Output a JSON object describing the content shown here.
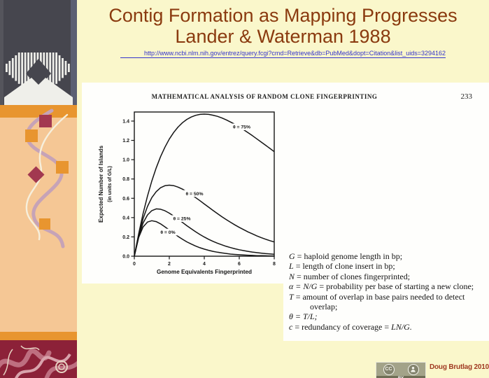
{
  "theme": {
    "bg": "#FAF7CB",
    "title": "#8A3A0F",
    "link": "#3333CC",
    "peach": "#F5C795",
    "orange": "#E8952F",
    "maroon": "#A23850",
    "darkred": "#8C2138",
    "swirl": "#BE6F80",
    "logo-bg": "#46464E",
    "paper": "#FEFEFC",
    "ribbon-mauve": "#C6A3B7",
    "ribbon-white": "#F6EFDC",
    "credit": "#A03A22",
    "badge": "#A3A389",
    "badge-dark": "#6E6E55"
  },
  "slide": {
    "title_line1": "Contig Formation as Mapping Progresses",
    "title_line2": "Lander & Waterman 1988",
    "link": "http://www.ncbi.nlm.nih.gov/entrez/query.fcgi?cmd=Retrieve&db=PubMed&dopt=Citation&list_uids=3294162",
    "credit": "Doug Brutlag 2010"
  },
  "license_badge": {
    "cc_label": "CC",
    "by_label": "BY"
  },
  "paper": {
    "header": "MATHEMATICAL ANALYSIS OF RANDOM CLONE FINGERPRINTING",
    "page_number": "233",
    "definitions": [
      {
        "sym": "G",
        "mid": " = haploid genome length in bp;",
        "tail": ""
      },
      {
        "sym": "L",
        "mid": " = length of clone insert in bp;",
        "tail": ""
      },
      {
        "sym": "N",
        "mid": " = number of clones fingerprinted;",
        "tail": ""
      },
      {
        "sym": "α = N/G",
        "mid": " = probability per base of starting a new clone;",
        "tail": ""
      },
      {
        "sym": "T",
        "mid": " = amount of overlap in base pairs needed to detect overlap;",
        "tail": ""
      },
      {
        "sym": "θ = T/L;",
        "mid": "",
        "tail": ""
      },
      {
        "sym": "c",
        "mid": " = redundancy of coverage = ",
        "tail": "LN/G."
      }
    ]
  },
  "chart_data": {
    "type": "line",
    "title": "",
    "xlabel": "Genome Equivalents Fingerprinted",
    "ylabel": "Expected Number of Islands",
    "ylabel2": "(in units of G/L)",
    "xlim": [
      0,
      8
    ],
    "ylim": [
      0,
      1.494
    ],
    "xticks": [
      "0",
      "2",
      "4",
      "6",
      "8"
    ],
    "yticks": [
      "0.0",
      "0.2",
      "0.4",
      "0.6",
      "0.8",
      "1.0",
      "1.2",
      "1.4"
    ],
    "grid": false,
    "x_start": 0,
    "x_step": 0.25,
    "series": [
      {
        "name": "θ = 75%",
        "theta": 0.75,
        "label_at": [
          6.14,
          1.34
        ],
        "values": [
          0,
          0.235,
          0.441,
          0.622,
          0.779,
          0.915,
          1.031,
          1.13,
          1.213,
          1.282,
          1.338,
          1.383,
          1.417,
          1.442,
          1.459,
          1.469,
          1.472,
          1.469,
          1.461,
          1.449,
          1.433,
          1.413,
          1.39,
          1.366,
          1.339,
          1.31,
          1.28,
          1.249,
          1.216,
          1.183,
          1.15,
          1.117,
          1.083
        ]
      },
      {
        "name": "θ = 50%",
        "theta": 0.5,
        "label_at": [
          3.44,
          0.65
        ],
        "values": [
          0,
          0.221,
          0.389,
          0.515,
          0.607,
          0.669,
          0.709,
          0.73,
          0.736,
          0.731,
          0.716,
          0.695,
          0.669,
          0.64,
          0.608,
          0.575,
          0.541,
          0.508,
          0.474,
          0.442,
          0.41,
          0.38,
          0.352,
          0.324,
          0.299,
          0.275,
          0.252,
          0.231,
          0.211,
          0.193,
          0.176,
          0.161,
          0.147
        ]
      },
      {
        "name": "θ = 25%",
        "theta": 0.25,
        "label_at": [
          2.72,
          0.39
        ],
        "values": [
          0,
          0.207,
          0.344,
          0.427,
          0.472,
          0.49,
          0.487,
          0.471,
          0.446,
          0.416,
          0.383,
          0.35,
          0.316,
          0.284,
          0.254,
          0.225,
          0.199,
          0.175,
          0.154,
          0.135,
          0.118,
          0.102,
          0.089,
          0.077,
          0.067,
          0.058,
          0.05,
          0.043,
          0.037,
          0.032,
          0.027,
          0.023,
          0.02
        ]
      },
      {
        "name": "θ = 0%",
        "theta": 0.0,
        "label_at": [
          1.92,
          0.25
        ],
        "values": [
          0,
          0.195,
          0.303,
          0.354,
          0.368,
          0.358,
          0.335,
          0.304,
          0.271,
          0.237,
          0.205,
          0.176,
          0.149,
          0.126,
          0.106,
          0.088,
          0.073,
          0.061,
          0.05,
          0.041,
          0.034,
          0.028,
          0.022,
          0.018,
          0.015,
          0.012,
          0.01,
          0.008,
          0.006,
          0.005,
          0.004,
          0.003,
          0.003
        ]
      }
    ]
  }
}
